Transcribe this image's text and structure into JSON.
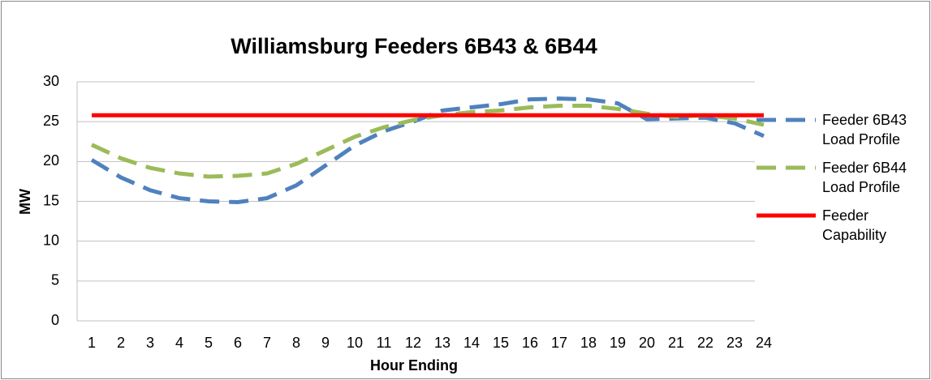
{
  "chart_data": {
    "type": "line",
    "title": "Williamsburg Feeders 6B43 & 6B44",
    "x_label": "Hour Ending",
    "y_label": "MW",
    "categories": [
      "1",
      "2",
      "3",
      "4",
      "5",
      "6",
      "7",
      "8",
      "9",
      "10",
      "11",
      "12",
      "13",
      "14",
      "15",
      "16",
      "17",
      "18",
      "19",
      "20",
      "21",
      "22",
      "23",
      "24"
    ],
    "series": [
      {
        "name": "Feeder 6B43 Load Profile",
        "color": "#4f81bd",
        "dashed": true,
        "values": [
          20.2,
          18,
          16.4,
          15.4,
          15,
          14.9,
          15.4,
          17,
          19.5,
          22,
          23.8,
          25,
          26.4,
          26.8,
          27.2,
          27.8,
          27.9,
          27.8,
          27.3,
          25.3,
          25.4,
          25.5,
          24.8,
          23.2
        ]
      },
      {
        "name": "Feeder 6B44 Load Profile",
        "color": "#9bbb59",
        "dashed": true,
        "values": [
          22.1,
          20.4,
          19.2,
          18.5,
          18.1,
          18.2,
          18.5,
          19.7,
          21.4,
          23.1,
          24.3,
          25.2,
          25.8,
          26.2,
          26.4,
          26.8,
          27.0,
          27.0,
          26.6,
          26.0,
          25.6,
          25.8,
          25.4,
          24.6
        ]
      },
      {
        "name": "Feeder Capability",
        "color": "#ff0000",
        "dashed": false,
        "values": [
          25.8,
          25.8,
          25.8,
          25.8,
          25.8,
          25.8,
          25.8,
          25.8,
          25.8,
          25.8,
          25.8,
          25.8,
          25.8,
          25.8,
          25.8,
          25.8,
          25.8,
          25.8,
          25.8,
          25.8,
          25.8,
          25.8,
          25.8,
          25.8
        ]
      }
    ],
    "ylim": [
      0,
      30
    ],
    "yticks": [
      0,
      5,
      10,
      15,
      20,
      25,
      30
    ],
    "grid": true,
    "legend": "right"
  }
}
